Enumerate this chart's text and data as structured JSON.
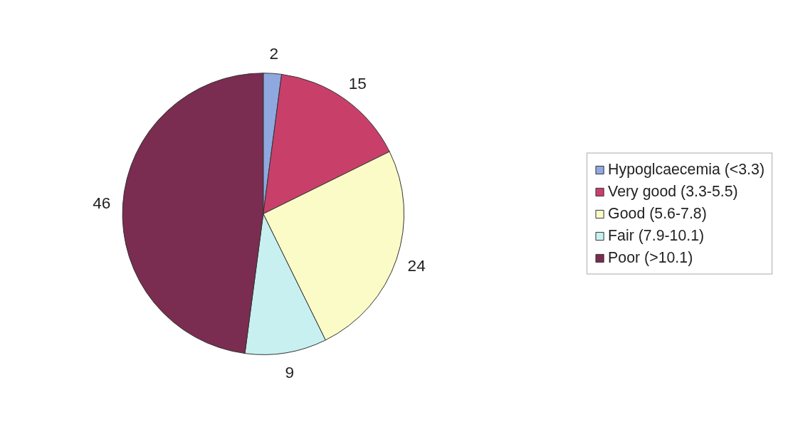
{
  "chart_data": {
    "type": "pie",
    "categories": [
      "Hypoglcaecemia (<3.3)",
      "Very good (3.3-5.5)",
      "Good (5.6-7.8)",
      "Fair (7.9-10.1)",
      "Poor (>10.1)"
    ],
    "values": [
      2,
      15,
      24,
      9,
      46
    ],
    "colors": [
      "#8fa8e0",
      "#c8406a",
      "#fbfbc8",
      "#c8f0f0",
      "#7a2d50"
    ],
    "data_labels": true,
    "legend": "right"
  }
}
